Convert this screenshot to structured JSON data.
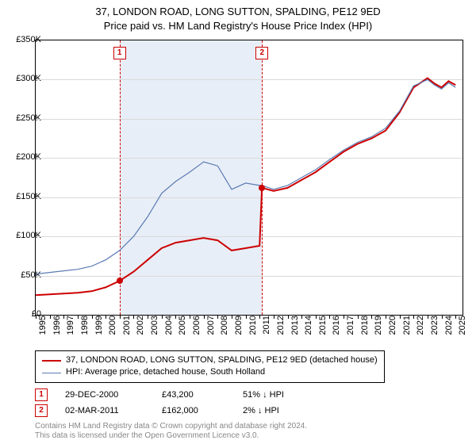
{
  "title": {
    "line1": "37, LONDON ROAD, LONG SUTTON, SPALDING, PE12 9ED",
    "line2": "Price paid vs. HM Land Registry's House Price Index (HPI)"
  },
  "chart": {
    "type": "line",
    "background_color": "#ffffff",
    "grid_color": "#d9d9d9",
    "band_color": "#e8eef7",
    "band_x0": 2000.99,
    "band_x1": 2011.17,
    "xlim": [
      1995,
      2025.5
    ],
    "ylim": [
      0,
      350000
    ],
    "ytick_step": 50000,
    "ylabels": [
      "£0",
      "£50K",
      "£100K",
      "£150K",
      "£200K",
      "£250K",
      "£300K",
      "£350K"
    ],
    "xticks": [
      1995,
      1996,
      1997,
      1998,
      1999,
      2000,
      2001,
      2002,
      2003,
      2004,
      2005,
      2006,
      2007,
      2008,
      2009,
      2010,
      2011,
      2012,
      2013,
      2014,
      2015,
      2016,
      2017,
      2018,
      2019,
      2020,
      2021,
      2022,
      2023,
      2024,
      2025
    ],
    "markers": [
      {
        "n": "1",
        "x": 2000.99,
        "price": 43200
      },
      {
        "n": "2",
        "x": 2011.17,
        "price": 162000
      }
    ],
    "series": [
      {
        "name": "37, LONDON ROAD, LONG SUTTON, SPALDING, PE12 9ED (detached house)",
        "color": "#cc0000",
        "width": 2,
        "points": [
          [
            1995,
            25000
          ],
          [
            1996,
            26000
          ],
          [
            1997,
            27000
          ],
          [
            1998,
            28000
          ],
          [
            1999,
            30000
          ],
          [
            2000,
            35000
          ],
          [
            2000.99,
            43200
          ],
          [
            2002,
            55000
          ],
          [
            2003,
            70000
          ],
          [
            2004,
            85000
          ],
          [
            2005,
            92000
          ],
          [
            2006,
            95000
          ],
          [
            2007,
            98000
          ],
          [
            2008,
            95000
          ],
          [
            2009,
            82000
          ],
          [
            2010,
            85000
          ],
          [
            2011,
            88000
          ],
          [
            2011.17,
            162000
          ],
          [
            2012,
            158000
          ],
          [
            2013,
            162000
          ],
          [
            2014,
            172000
          ],
          [
            2015,
            182000
          ],
          [
            2016,
            195000
          ],
          [
            2017,
            208000
          ],
          [
            2018,
            218000
          ],
          [
            2019,
            225000
          ],
          [
            2020,
            235000
          ],
          [
            2021,
            258000
          ],
          [
            2022,
            290000
          ],
          [
            2023,
            302000
          ],
          [
            2023.5,
            295000
          ],
          [
            2024,
            290000
          ],
          [
            2024.5,
            298000
          ],
          [
            2025,
            293000
          ]
        ]
      },
      {
        "name": "HPI: Average price, detached house, South Holland",
        "color": "#5b7bb4",
        "width": 1.2,
        "points": [
          [
            1995,
            52000
          ],
          [
            1996,
            54000
          ],
          [
            1997,
            56000
          ],
          [
            1998,
            58000
          ],
          [
            1999,
            62000
          ],
          [
            2000,
            70000
          ],
          [
            2001,
            82000
          ],
          [
            2002,
            100000
          ],
          [
            2003,
            125000
          ],
          [
            2004,
            155000
          ],
          [
            2005,
            170000
          ],
          [
            2006,
            182000
          ],
          [
            2007,
            195000
          ],
          [
            2008,
            190000
          ],
          [
            2009,
            160000
          ],
          [
            2010,
            168000
          ],
          [
            2011,
            165000
          ],
          [
            2011.17,
            165000
          ],
          [
            2012,
            160000
          ],
          [
            2013,
            165000
          ],
          [
            2014,
            175000
          ],
          [
            2015,
            185000
          ],
          [
            2016,
            198000
          ],
          [
            2017,
            210000
          ],
          [
            2018,
            220000
          ],
          [
            2019,
            227000
          ],
          [
            2020,
            238000
          ],
          [
            2021,
            260000
          ],
          [
            2022,
            292000
          ],
          [
            2023,
            300000
          ],
          [
            2023.5,
            293000
          ],
          [
            2024,
            288000
          ],
          [
            2024.5,
            296000
          ],
          [
            2025,
            290000
          ]
        ]
      }
    ]
  },
  "legend": {
    "items": [
      {
        "color": "#cc0000",
        "width": 2,
        "label": "37, LONDON ROAD, LONG SUTTON, SPALDING, PE12 9ED (detached house)"
      },
      {
        "color": "#5b7bb4",
        "width": 1.2,
        "label": "HPI: Average price, detached house, South Holland"
      }
    ]
  },
  "sales": [
    {
      "n": "1",
      "date": "29-DEC-2000",
      "price": "£43,200",
      "diff": "51% ↓ HPI"
    },
    {
      "n": "2",
      "date": "02-MAR-2011",
      "price": "£162,000",
      "diff": "2% ↓ HPI"
    }
  ],
  "footer": {
    "line1": "Contains HM Land Registry data © Crown copyright and database right 2024.",
    "line2": "This data is licensed under the Open Government Licence v3.0."
  }
}
